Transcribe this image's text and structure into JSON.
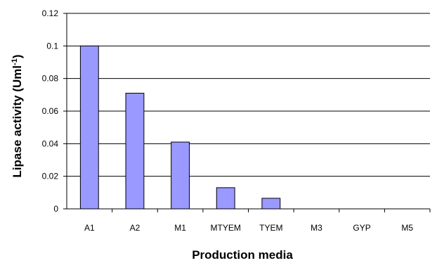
{
  "chart_data": {
    "type": "bar",
    "categories": [
      "A1",
      "A2",
      "M1",
      "MTYEM",
      "TYEM",
      "M3",
      "GYP",
      "M5"
    ],
    "values": [
      0.1,
      0.071,
      0.041,
      0.013,
      0.0065,
      0,
      0,
      0
    ],
    "xlabel": "Production media",
    "ylabel": "Lipase activity (Uml",
    "ylabel_sup": "-1",
    "ylabel_end": ")",
    "ylim": [
      0,
      0.12
    ],
    "yticks": [
      "0",
      "0.02",
      "0.04",
      "0.06",
      "0.08",
      "0.1",
      "0.12"
    ],
    "grid": true,
    "bar_color": "#9999ff",
    "bar_stroke": "#000000"
  }
}
